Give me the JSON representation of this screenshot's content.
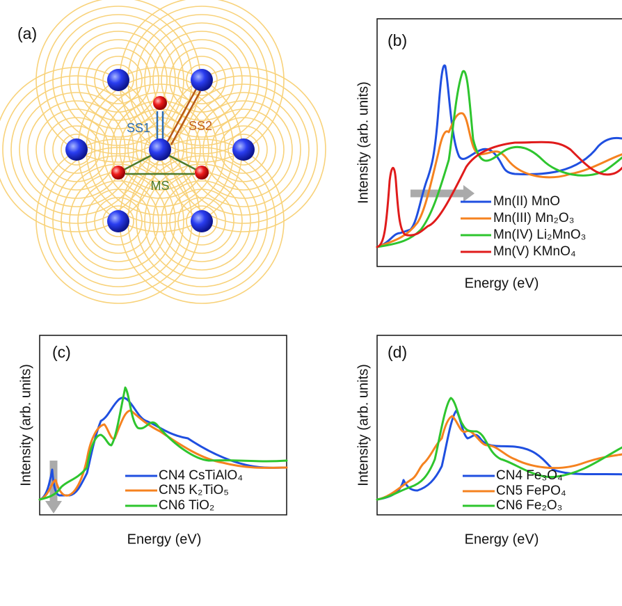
{
  "panels": [
    {
      "label": "(a)",
      "annotations": [
        "SS1",
        "SS2",
        "MS"
      ]
    },
    {
      "label": "(b)",
      "y_label": "Intensity (arb. units)",
      "x_label": "Energy (eV)",
      "legend": [
        "Mn(II)  MnO",
        "Mn(III) Mn₂O₃",
        "Mn(IV) Li₂MnO₃",
        "Mn(V)  KMnO₄"
      ]
    },
    {
      "label": "(c)",
      "y_label": "Intensity (arb. units)",
      "x_label": "Energy (eV)",
      "legend": [
        "CN4  CsTiAlO₄",
        "CN5  K₂TiO₅",
        "CN6  TiO₂"
      ]
    },
    {
      "label": "(d)",
      "y_label": "Intensity (arb. units)",
      "x_label": "Energy (eV)",
      "legend": [
        "CN4  Fe₃O₄",
        "CN5  FePO₄",
        "CN6  Fe₂O₃"
      ]
    }
  ]
}
